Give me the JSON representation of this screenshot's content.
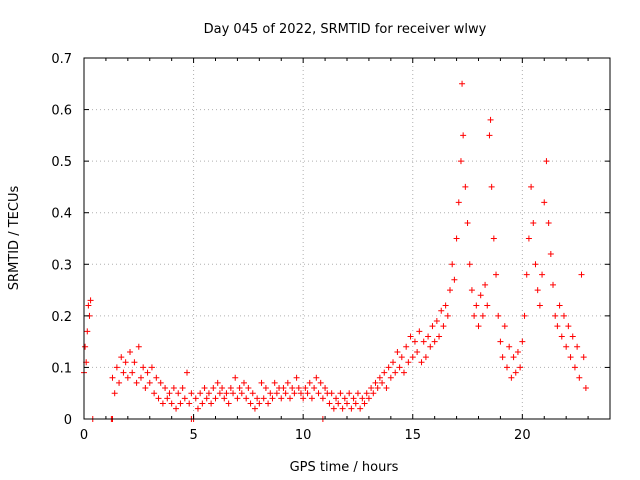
{
  "chart_data": {
    "type": "scatter",
    "title": "Day 045 of 2022, SRMTID for receiver wlwy",
    "xlabel": "GPS time / hours",
    "ylabel": "SRMTID / TECUs",
    "xlim": [
      0,
      24
    ],
    "ylim": [
      0,
      0.7
    ],
    "xticks": [
      0,
      5,
      10,
      15,
      20
    ],
    "xtick_labels": [
      "0",
      "5",
      "10",
      "15",
      "20"
    ],
    "yticks": [
      0,
      0.1,
      0.2,
      0.3,
      0.4,
      0.5,
      0.6,
      0.7
    ],
    "ytick_labels": [
      "0",
      "0.1",
      "0.2",
      "0.3",
      "0.4",
      "0.5",
      "0.6",
      "0.7"
    ],
    "grid": true,
    "marker": "+",
    "color": "#ff0000",
    "series": [
      {
        "name": "SRMTID",
        "points": [
          [
            0.0,
            0.09
          ],
          [
            0.05,
            0.14
          ],
          [
            0.1,
            0.11
          ],
          [
            0.15,
            0.17
          ],
          [
            0.2,
            0.22
          ],
          [
            0.25,
            0.2
          ],
          [
            0.3,
            0.23
          ],
          [
            0.4,
            0.0
          ],
          [
            1.25,
            0.0
          ],
          [
            1.3,
            0.08
          ],
          [
            1.4,
            0.05
          ],
          [
            1.5,
            0.1
          ],
          [
            1.6,
            0.07
          ],
          [
            1.7,
            0.12
          ],
          [
            1.8,
            0.09
          ],
          [
            1.9,
            0.11
          ],
          [
            2.0,
            0.08
          ],
          [
            2.1,
            0.13
          ],
          [
            2.2,
            0.09
          ],
          [
            2.3,
            0.11
          ],
          [
            2.4,
            0.07
          ],
          [
            2.5,
            0.14
          ],
          [
            2.6,
            0.08
          ],
          [
            2.7,
            0.1
          ],
          [
            2.8,
            0.06
          ],
          [
            2.9,
            0.09
          ],
          [
            3.0,
            0.07
          ],
          [
            3.1,
            0.1
          ],
          [
            3.2,
            0.05
          ],
          [
            3.3,
            0.08
          ],
          [
            3.4,
            0.04
          ],
          [
            3.5,
            0.07
          ],
          [
            3.6,
            0.03
          ],
          [
            3.7,
            0.06
          ],
          [
            3.8,
            0.04
          ],
          [
            3.9,
            0.05
          ],
          [
            4.0,
            0.03
          ],
          [
            4.1,
            0.06
          ],
          [
            4.2,
            0.02
          ],
          [
            4.3,
            0.05
          ],
          [
            4.4,
            0.03
          ],
          [
            4.5,
            0.06
          ],
          [
            4.6,
            0.04
          ],
          [
            4.7,
            0.09
          ],
          [
            4.8,
            0.03
          ],
          [
            4.9,
            0.05
          ],
          [
            5.0,
            0.0
          ],
          [
            5.1,
            0.04
          ],
          [
            5.2,
            0.02
          ],
          [
            5.3,
            0.05
          ],
          [
            5.4,
            0.03
          ],
          [
            5.5,
            0.06
          ],
          [
            5.6,
            0.04
          ],
          [
            5.7,
            0.05
          ],
          [
            5.8,
            0.03
          ],
          [
            5.9,
            0.06
          ],
          [
            6.0,
            0.04
          ],
          [
            6.1,
            0.07
          ],
          [
            6.2,
            0.05
          ],
          [
            6.3,
            0.06
          ],
          [
            6.4,
            0.04
          ],
          [
            6.5,
            0.05
          ],
          [
            6.6,
            0.03
          ],
          [
            6.7,
            0.06
          ],
          [
            6.8,
            0.05
          ],
          [
            6.9,
            0.08
          ],
          [
            7.0,
            0.04
          ],
          [
            7.1,
            0.06
          ],
          [
            7.2,
            0.05
          ],
          [
            7.3,
            0.07
          ],
          [
            7.4,
            0.04
          ],
          [
            7.5,
            0.06
          ],
          [
            7.6,
            0.03
          ],
          [
            7.7,
            0.05
          ],
          [
            7.8,
            0.02
          ],
          [
            7.9,
            0.04
          ],
          [
            8.0,
            0.03
          ],
          [
            8.1,
            0.07
          ],
          [
            8.2,
            0.04
          ],
          [
            8.3,
            0.06
          ],
          [
            8.4,
            0.03
          ],
          [
            8.5,
            0.05
          ],
          [
            8.6,
            0.04
          ],
          [
            8.7,
            0.07
          ],
          [
            8.8,
            0.05
          ],
          [
            8.9,
            0.06
          ],
          [
            9.0,
            0.04
          ],
          [
            9.1,
            0.06
          ],
          [
            9.2,
            0.05
          ],
          [
            9.3,
            0.07
          ],
          [
            9.4,
            0.04
          ],
          [
            9.5,
            0.06
          ],
          [
            9.6,
            0.05
          ],
          [
            9.7,
            0.08
          ],
          [
            9.8,
            0.06
          ],
          [
            9.9,
            0.05
          ],
          [
            10.0,
            0.04
          ],
          [
            10.1,
            0.06
          ],
          [
            10.2,
            0.05
          ],
          [
            10.3,
            0.07
          ],
          [
            10.4,
            0.04
          ],
          [
            10.5,
            0.06
          ],
          [
            10.6,
            0.08
          ],
          [
            10.7,
            0.05
          ],
          [
            10.8,
            0.07
          ],
          [
            10.9,
            0.04
          ],
          [
            11.0,
            0.06
          ],
          [
            11.1,
            0.05
          ],
          [
            11.2,
            0.03
          ],
          [
            11.3,
            0.05
          ],
          [
            11.4,
            0.02
          ],
          [
            11.5,
            0.04
          ],
          [
            11.6,
            0.03
          ],
          [
            11.7,
            0.05
          ],
          [
            11.8,
            0.02
          ],
          [
            11.9,
            0.04
          ],
          [
            12.0,
            0.03
          ],
          [
            12.1,
            0.05
          ],
          [
            12.2,
            0.02
          ],
          [
            12.3,
            0.04
          ],
          [
            12.4,
            0.03
          ],
          [
            12.5,
            0.05
          ],
          [
            12.6,
            0.02
          ],
          [
            12.7,
            0.04
          ],
          [
            12.8,
            0.03
          ],
          [
            12.9,
            0.05
          ],
          [
            13.0,
            0.04
          ],
          [
            13.1,
            0.06
          ],
          [
            13.2,
            0.05
          ],
          [
            13.3,
            0.07
          ],
          [
            13.4,
            0.06
          ],
          [
            13.5,
            0.08
          ],
          [
            13.6,
            0.07
          ],
          [
            13.7,
            0.09
          ],
          [
            13.8,
            0.06
          ],
          [
            13.9,
            0.1
          ],
          [
            14.0,
            0.08
          ],
          [
            14.1,
            0.11
          ],
          [
            14.2,
            0.09
          ],
          [
            14.3,
            0.13
          ],
          [
            14.4,
            0.1
          ],
          [
            14.5,
            0.12
          ],
          [
            14.6,
            0.09
          ],
          [
            14.7,
            0.14
          ],
          [
            14.8,
            0.11
          ],
          [
            14.9,
            0.16
          ],
          [
            15.0,
            0.12
          ],
          [
            15.1,
            0.15
          ],
          [
            15.2,
            0.13
          ],
          [
            15.3,
            0.17
          ],
          [
            15.4,
            0.11
          ],
          [
            15.5,
            0.15
          ],
          [
            15.6,
            0.12
          ],
          [
            15.7,
            0.16
          ],
          [
            15.8,
            0.14
          ],
          [
            15.9,
            0.18
          ],
          [
            16.0,
            0.15
          ],
          [
            16.1,
            0.19
          ],
          [
            16.2,
            0.16
          ],
          [
            16.3,
            0.21
          ],
          [
            16.4,
            0.18
          ],
          [
            16.5,
            0.22
          ],
          [
            16.6,
            0.2
          ],
          [
            16.7,
            0.25
          ],
          [
            16.8,
            0.3
          ],
          [
            16.9,
            0.27
          ],
          [
            17.0,
            0.35
          ],
          [
            17.1,
            0.42
          ],
          [
            17.2,
            0.5
          ],
          [
            17.25,
            0.65
          ],
          [
            17.3,
            0.55
          ],
          [
            17.4,
            0.45
          ],
          [
            17.5,
            0.38
          ],
          [
            17.6,
            0.3
          ],
          [
            17.7,
            0.25
          ],
          [
            17.8,
            0.2
          ],
          [
            17.9,
            0.22
          ],
          [
            18.0,
            0.18
          ],
          [
            18.1,
            0.24
          ],
          [
            18.2,
            0.2
          ],
          [
            18.3,
            0.26
          ],
          [
            18.4,
            0.22
          ],
          [
            18.5,
            0.55
          ],
          [
            18.55,
            0.58
          ],
          [
            18.6,
            0.45
          ],
          [
            18.7,
            0.35
          ],
          [
            18.8,
            0.28
          ],
          [
            18.9,
            0.2
          ],
          [
            19.0,
            0.15
          ],
          [
            19.1,
            0.12
          ],
          [
            19.2,
            0.18
          ],
          [
            19.3,
            0.1
          ],
          [
            19.4,
            0.14
          ],
          [
            19.5,
            0.08
          ],
          [
            19.6,
            0.12
          ],
          [
            19.7,
            0.09
          ],
          [
            19.8,
            0.13
          ],
          [
            19.9,
            0.1
          ],
          [
            20.0,
            0.15
          ],
          [
            20.1,
            0.2
          ],
          [
            20.2,
            0.28
          ],
          [
            20.3,
            0.35
          ],
          [
            20.4,
            0.45
          ],
          [
            20.5,
            0.38
          ],
          [
            20.6,
            0.3
          ],
          [
            20.7,
            0.25
          ],
          [
            20.8,
            0.22
          ],
          [
            20.9,
            0.28
          ],
          [
            21.0,
            0.42
          ],
          [
            21.1,
            0.5
          ],
          [
            21.2,
            0.38
          ],
          [
            21.3,
            0.32
          ],
          [
            21.4,
            0.26
          ],
          [
            21.5,
            0.2
          ],
          [
            21.6,
            0.18
          ],
          [
            21.7,
            0.22
          ],
          [
            21.8,
            0.16
          ],
          [
            21.9,
            0.2
          ],
          [
            22.0,
            0.14
          ],
          [
            22.1,
            0.18
          ],
          [
            22.2,
            0.12
          ],
          [
            22.3,
            0.16
          ],
          [
            22.4,
            0.1
          ],
          [
            22.5,
            0.14
          ],
          [
            22.6,
            0.08
          ],
          [
            22.7,
            0.28
          ],
          [
            22.8,
            0.12
          ],
          [
            22.9,
            0.06
          ],
          [
            1.3,
            0.0
          ],
          [
            4.9,
            0.0
          ],
          [
            10.9,
            0.0
          ]
        ]
      }
    ]
  }
}
